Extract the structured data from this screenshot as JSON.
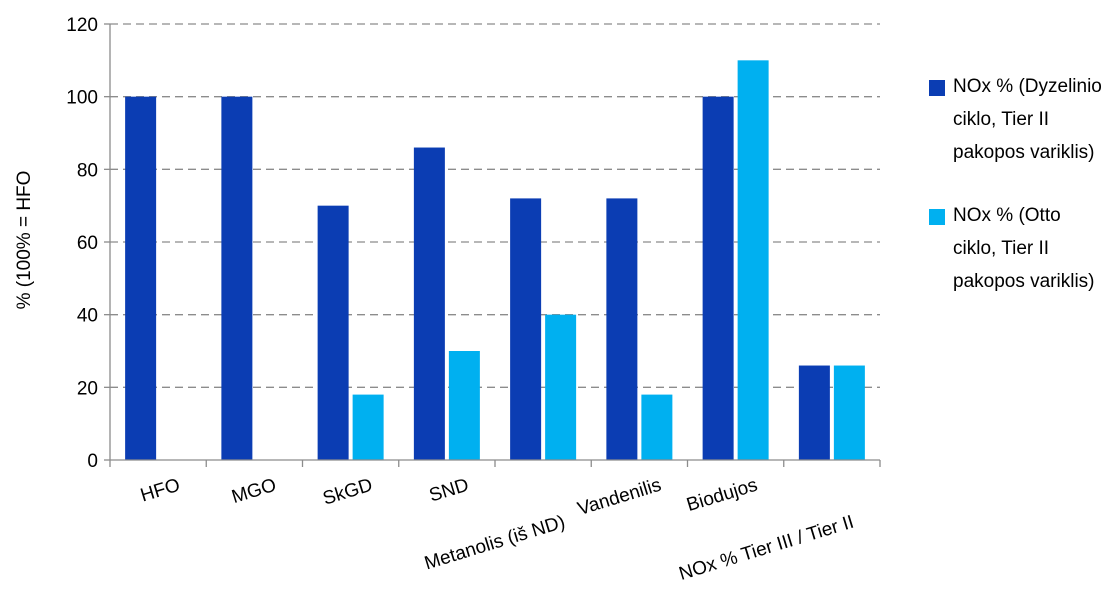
{
  "chart_data": {
    "type": "bar",
    "categories": [
      "HFO",
      "MGO",
      "SkGD",
      "SND",
      "Metanolis (iš ND)",
      "Vandenilis",
      "Biodujos",
      "NOx % Tier III / Tier II"
    ],
    "series": [
      {
        "name": "NOx % (Dyzelinio ciklo, Tier II pakopos variklis)",
        "color": "#0b3db3",
        "values": [
          100,
          100,
          70,
          86,
          72,
          72,
          100,
          26
        ]
      },
      {
        "name": "NOx % (Otto ciklo, Tier II pakopos variklis)",
        "color": "#00b0f0",
        "values": [
          null,
          null,
          18,
          30,
          40,
          18,
          110,
          26
        ]
      }
    ],
    "ylabel": "% (100% = HFO",
    "xlabel": "",
    "ylim": [
      0,
      120
    ],
    "yticks": [
      0,
      20,
      40,
      60,
      80,
      100,
      120
    ],
    "grid": true,
    "legend_position": "right"
  }
}
